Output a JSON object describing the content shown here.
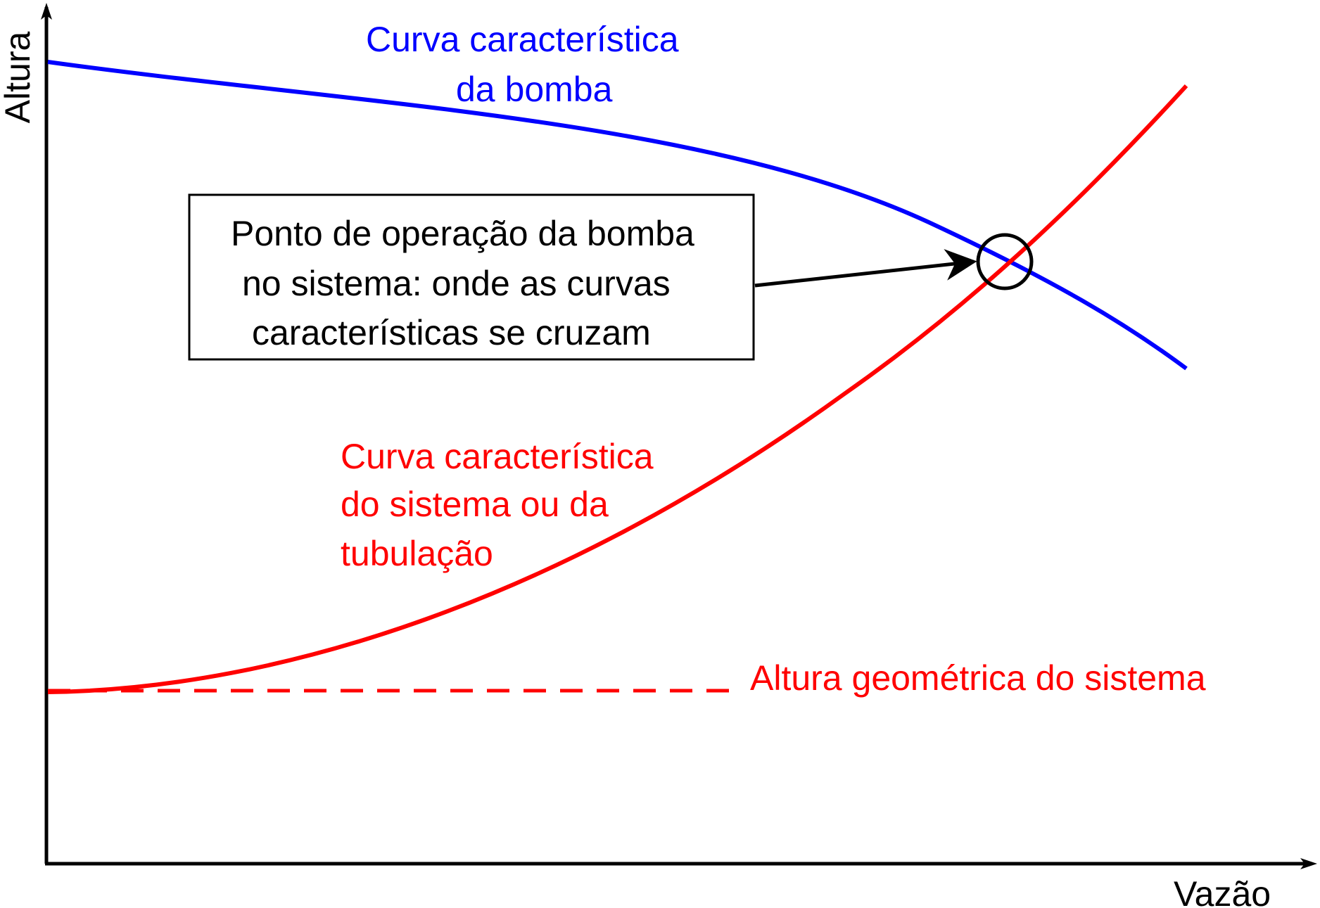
{
  "axes": {
    "y_label": "Altura",
    "x_label": "Vazão"
  },
  "pump_curve": {
    "label_line1": "Curva característica",
    "label_line2": "da bomba",
    "color": "#0000ff"
  },
  "system_curve": {
    "label_line1": "Curva característica",
    "label_line2": "do sistema ou da",
    "label_line3": "tubulação",
    "color": "#ff0000"
  },
  "static_head": {
    "label": "Altura geométrica do sistema",
    "color": "#ff0000"
  },
  "operating_point": {
    "text_line1": "Ponto de operação da bomba",
    "text_line2": "no sistema: onde as curvas",
    "text_line3": "características se cruzam"
  },
  "colors": {
    "axis": "#000000",
    "pump": "#0000ff",
    "system": "#ff0000"
  }
}
